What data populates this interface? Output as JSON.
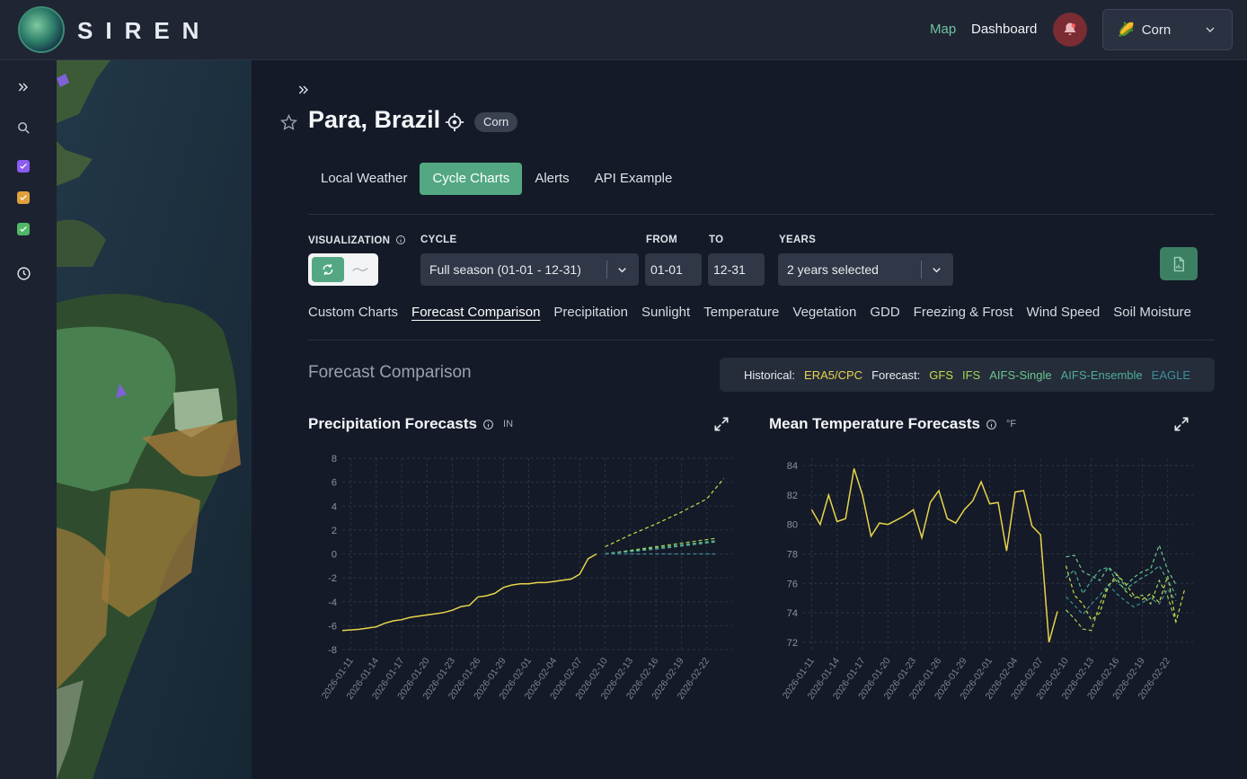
{
  "header": {
    "logo_text": "SIREN",
    "nav": {
      "map": "Map",
      "dashboard": "Dashboard"
    },
    "crop": {
      "emoji": "🌽",
      "label": "Corn"
    }
  },
  "location": {
    "title": "Para, Brazil",
    "badge": "Corn"
  },
  "tabs": [
    "Local Weather",
    "Cycle Charts",
    "Alerts",
    "API Example"
  ],
  "active_tab": 1,
  "filters": {
    "visualization_label": "VISUALIZATION",
    "cycle_label": "CYCLE",
    "cycle_value": "Full season (01-01 - 12-31)",
    "from_label": "FROM",
    "from_value": "01-01",
    "to_label": "TO",
    "to_value": "12-31",
    "years_label": "YEARS",
    "years_value": "2 years selected"
  },
  "subtabs": [
    "Custom Charts",
    "Forecast Comparison",
    "Precipitation",
    "Sunlight",
    "Temperature",
    "Vegetation",
    "GDD",
    "Freezing & Frost",
    "Wind Speed",
    "Soil Moisture"
  ],
  "active_subtab": 1,
  "section_title": "Forecast Comparison",
  "legend": {
    "historical_label": "Historical:",
    "historical": [
      {
        "name": "ERA5/CPC",
        "color": "#e8d44d"
      }
    ],
    "forecast_label": "Forecast:",
    "forecast": [
      {
        "name": "GFS",
        "color": "#c8dc4a"
      },
      {
        "name": "IFS",
        "color": "#a3d45c"
      },
      {
        "name": "AIFS-Single",
        "color": "#6cc68d"
      },
      {
        "name": "AIFS-Ensemble",
        "color": "#4fae96"
      },
      {
        "name": "EAGLE",
        "color": "#3f8f9a"
      }
    ]
  },
  "charts": {
    "precip": {
      "title": "Precipitation Forecasts",
      "unit": "IN"
    },
    "temp": {
      "title": "Mean Temperature Forecasts",
      "unit": "°F"
    }
  },
  "chart_data": [
    {
      "type": "line",
      "title": "Precipitation Forecasts",
      "ylabel": "IN",
      "ylim": [
        -8,
        8
      ],
      "yticks": [
        -8,
        -6,
        -4,
        -2,
        0,
        2,
        4,
        6,
        8
      ],
      "x_range": [
        "2026-01-10",
        "2026-02-25"
      ],
      "xticks": [
        "2026-01-11",
        "2026-01-14",
        "2026-01-17",
        "2026-01-20",
        "2026-01-23",
        "2026-01-26",
        "2026-01-29",
        "2026-02-01",
        "2026-02-04",
        "2026-02-07",
        "2026-02-10",
        "2026-02-13",
        "2026-02-16",
        "2026-02-19",
        "2026-02-22"
      ],
      "grid": true,
      "series": [
        {
          "name": "ERA5/CPC",
          "color": "#e8d44d",
          "dashed": false,
          "x": [
            "2026-01-10",
            "2026-01-12",
            "2026-01-13",
            "2026-01-14",
            "2026-01-15",
            "2026-01-16",
            "2026-01-17",
            "2026-01-18",
            "2026-01-19",
            "2026-01-20",
            "2026-01-21",
            "2026-01-22",
            "2026-01-23",
            "2026-01-24",
            "2026-01-25",
            "2026-01-26",
            "2026-01-27",
            "2026-01-28",
            "2026-01-29",
            "2026-01-30",
            "2026-01-31",
            "2026-02-01",
            "2026-02-02",
            "2026-02-03",
            "2026-02-04",
            "2026-02-05",
            "2026-02-06",
            "2026-02-07",
            "2026-02-08",
            "2026-02-09"
          ],
          "y": [
            -6.4,
            -6.3,
            -6.2,
            -6.1,
            -5.8,
            -5.6,
            -5.5,
            -5.3,
            -5.2,
            -5.1,
            -5.0,
            -4.9,
            -4.7,
            -4.4,
            -4.3,
            -3.6,
            -3.5,
            -3.3,
            -2.8,
            -2.6,
            -2.5,
            -2.5,
            -2.4,
            -2.4,
            -2.3,
            -2.2,
            -2.1,
            -1.7,
            -0.4,
            0.0
          ]
        },
        {
          "name": "GFS",
          "color": "#c8dc4a",
          "dashed": true,
          "x": [
            "2026-02-10",
            "2026-02-13",
            "2026-02-16",
            "2026-02-19",
            "2026-02-22",
            "2026-02-24"
          ],
          "y": [
            0.6,
            1.6,
            2.5,
            3.5,
            4.6,
            6.3
          ]
        },
        {
          "name": "IFS",
          "color": "#a3d45c",
          "dashed": true,
          "x": [
            "2026-02-10",
            "2026-02-16",
            "2026-02-23"
          ],
          "y": [
            0.0,
            0.6,
            1.3
          ]
        },
        {
          "name": "AIFS-Single",
          "color": "#6cc68d",
          "dashed": true,
          "x": [
            "2026-02-10",
            "2026-02-16",
            "2026-02-23"
          ],
          "y": [
            0.0,
            0.5,
            1.1
          ]
        },
        {
          "name": "AIFS-Ensemble",
          "color": "#4fae96",
          "dashed": true,
          "x": [
            "2026-02-10",
            "2026-02-16",
            "2026-02-23"
          ],
          "y": [
            0.0,
            0.4,
            1.0
          ]
        },
        {
          "name": "EAGLE",
          "color": "#3f8f9a",
          "dashed": true,
          "x": [
            "2026-02-10",
            "2026-02-16",
            "2026-02-23"
          ],
          "y": [
            0.0,
            0.0,
            0.0
          ]
        }
      ]
    },
    {
      "type": "line",
      "title": "Mean Temperature Forecasts",
      "ylabel": "°F",
      "ylim": [
        71.5,
        84.5
      ],
      "yticks": [
        72,
        74,
        76,
        78,
        80,
        82,
        84
      ],
      "x_range": [
        "2026-01-10",
        "2026-02-25"
      ],
      "xticks": [
        "2026-01-11",
        "2026-01-14",
        "2026-01-17",
        "2026-01-20",
        "2026-01-23",
        "2026-01-26",
        "2026-01-29",
        "2026-02-01",
        "2026-02-04",
        "2026-02-07",
        "2026-02-10",
        "2026-02-13",
        "2026-02-16",
        "2026-02-19",
        "2026-02-22"
      ],
      "grid": true,
      "series": [
        {
          "name": "ERA5/CPC",
          "color": "#e8d44d",
          "dashed": false,
          "x": [
            "2026-01-11",
            "2026-01-12",
            "2026-01-13",
            "2026-01-14",
            "2026-01-15",
            "2026-01-16",
            "2026-01-17",
            "2026-01-18",
            "2026-01-19",
            "2026-01-20",
            "2026-01-21",
            "2026-01-22",
            "2026-01-23",
            "2026-01-24",
            "2026-01-25",
            "2026-01-26",
            "2026-01-27",
            "2026-01-28",
            "2026-01-29",
            "2026-01-30",
            "2026-01-31",
            "2026-02-01",
            "2026-02-02",
            "2026-02-03",
            "2026-02-04",
            "2026-02-05",
            "2026-02-06",
            "2026-02-07",
            "2026-02-08",
            "2026-02-09",
            "2026-02-10"
          ],
          "y": [
            81.0,
            80.0,
            82.0,
            80.2,
            80.4,
            83.8,
            82.0,
            79.2,
            80.1,
            80.0,
            80.3,
            80.6,
            81.0,
            79.1,
            81.5,
            82.3,
            80.4,
            80.1,
            81.0,
            81.6,
            82.9,
            81.4,
            81.5,
            78.2,
            82.2,
            82.3,
            79.9,
            79.3,
            72.0,
            74.1,
            null
          ]
        },
        {
          "name": "GFS",
          "color": "#c8dc4a",
          "dashed": true,
          "x": [
            "2026-02-10",
            "2026-02-11",
            "2026-02-12",
            "2026-02-13",
            "2026-02-14",
            "2026-02-15",
            "2026-02-16",
            "2026-02-17",
            "2026-02-18",
            "2026-02-19",
            "2026-02-20",
            "2026-02-21",
            "2026-02-22",
            "2026-02-23",
            "2026-02-24"
          ],
          "y": [
            77.2,
            75.2,
            74.6,
            73.5,
            74.0,
            75.8,
            76.6,
            76.0,
            75.2,
            74.9,
            75.3,
            74.7,
            76.5,
            73.4,
            75.6
          ]
        },
        {
          "name": "IFS",
          "color": "#a3d45c",
          "dashed": true,
          "x": [
            "2026-02-10",
            "2026-02-11",
            "2026-02-12",
            "2026-02-13",
            "2026-02-14",
            "2026-02-15",
            "2026-02-16",
            "2026-02-17",
            "2026-02-18",
            "2026-02-19",
            "2026-02-20",
            "2026-02-21",
            "2026-02-22",
            "2026-02-23"
          ],
          "y": [
            74.2,
            73.6,
            72.9,
            72.8,
            74.6,
            75.9,
            76.3,
            75.5,
            75.0,
            75.2,
            74.6,
            76.2,
            75.1,
            73.3
          ]
        },
        {
          "name": "AIFS-Single",
          "color": "#6cc68d",
          "dashed": true,
          "x": [
            "2026-02-10",
            "2026-02-11",
            "2026-02-12",
            "2026-02-13",
            "2026-02-14",
            "2026-02-15",
            "2026-02-16",
            "2026-02-17",
            "2026-02-18",
            "2026-02-19",
            "2026-02-20",
            "2026-02-21",
            "2026-02-22",
            "2026-02-23"
          ],
          "y": [
            77.8,
            77.9,
            76.8,
            76.5,
            76.2,
            77.1,
            76.6,
            75.8,
            76.4,
            76.8,
            77.0,
            78.6,
            76.9,
            75.9
          ]
        },
        {
          "name": "AIFS-Ensemble",
          "color": "#4fae96",
          "dashed": true,
          "x": [
            "2026-02-10",
            "2026-02-11",
            "2026-02-12",
            "2026-02-13",
            "2026-02-14",
            "2026-02-15",
            "2026-02-16",
            "2026-02-17",
            "2026-02-18",
            "2026-02-19",
            "2026-02-20",
            "2026-02-21",
            "2026-02-22",
            "2026-02-23"
          ],
          "y": [
            76.4,
            76.9,
            75.3,
            76.2,
            76.9,
            77.1,
            76.1,
            75.6,
            76.0,
            76.4,
            76.7,
            77.2,
            76.2,
            75.2
          ]
        },
        {
          "name": "EAGLE",
          "color": "#3f8f9a",
          "dashed": true,
          "x": [
            "2026-02-10",
            "2026-02-11",
            "2026-02-12",
            "2026-02-13",
            "2026-02-14",
            "2026-02-15",
            "2026-02-16",
            "2026-02-17",
            "2026-02-18",
            "2026-02-19",
            "2026-02-20",
            "2026-02-21",
            "2026-02-22",
            "2026-02-23"
          ],
          "y": [
            75.1,
            74.5,
            73.9,
            74.6,
            75.2,
            75.9,
            75.3,
            74.8,
            74.4,
            74.7,
            75.0,
            74.6,
            75.6,
            74.8
          ]
        }
      ]
    }
  ]
}
